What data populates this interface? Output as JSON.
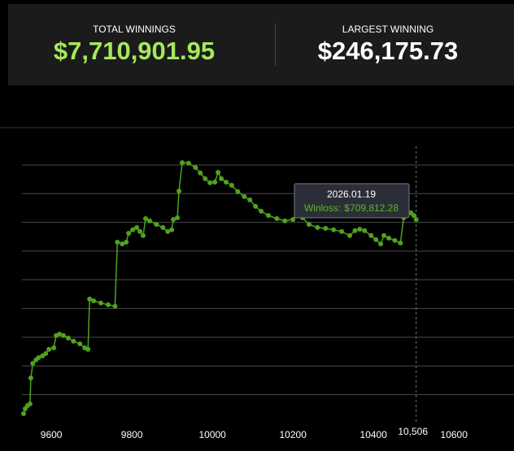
{
  "header": {
    "total_label": "TOTAL WINNINGS",
    "total_value": "$7,710,901.95",
    "largest_label": "LARGEST WINNING",
    "largest_value": "$246,175.73"
  },
  "chart_data": {
    "type": "line",
    "color": "#4fa21d",
    "x": [
      9531,
      9535,
      9541,
      9547,
      9549,
      9554,
      9562,
      9568,
      9578,
      9586,
      9594,
      9606,
      9612,
      9620,
      9630,
      9642,
      9655,
      9671,
      9683,
      9691,
      9695,
      9705,
      9723,
      9741,
      9758,
      9764,
      9776,
      9786,
      9792,
      9802,
      9812,
      9820,
      9828,
      9834,
      9844,
      9861,
      9877,
      9889,
      9899,
      9903,
      9913,
      9917,
      9925,
      9941,
      9958,
      9970,
      9982,
      9994,
      10006,
      10014,
      10022,
      10034,
      10048,
      10063,
      10079,
      10093,
      10107,
      10121,
      10139,
      10160,
      10180,
      10200,
      10210,
      10224,
      10240,
      10261,
      10281,
      10301,
      10321,
      10341,
      10354,
      10366,
      10378,
      10394,
      10406,
      10418,
      10426,
      10438,
      10453,
      10467,
      10475,
      10493,
      10500,
      10506
    ],
    "values": [
      34000,
      51000,
      62000,
      68000,
      158000,
      209000,
      221000,
      229000,
      235000,
      243000,
      258000,
      263000,
      306000,
      311000,
      306000,
      297000,
      286000,
      277000,
      263000,
      258000,
      433000,
      427000,
      419000,
      413000,
      408000,
      631000,
      625000,
      631000,
      662000,
      674000,
      682000,
      668000,
      654000,
      713000,
      705000,
      693000,
      682000,
      668000,
      674000,
      710000,
      716000,
      809000,
      908000,
      906000,
      891000,
      872000,
      852000,
      838000,
      840000,
      874000,
      852000,
      840000,
      829000,
      807000,
      790000,
      778000,
      756000,
      739000,
      724000,
      713000,
      705000,
      710000,
      733000,
      716000,
      693000,
      682000,
      679000,
      674000,
      668000,
      654000,
      671000,
      676000,
      671000,
      654000,
      640000,
      625000,
      654000,
      645000,
      637000,
      628000,
      716000,
      733000,
      724000,
      709812.28
    ],
    "xlim": [
      9527,
      10749
    ],
    "ylim": [
      0,
      1030000
    ],
    "xticks": [
      9600,
      9800,
      10000,
      10200,
      10400,
      10600
    ],
    "y_gridlines": [
      100000,
      200000,
      300000,
      400000,
      500000,
      600000,
      700000,
      800000,
      900000
    ],
    "crosshair": {
      "value": 10506,
      "label": "10,506"
    },
    "tooltip": {
      "date": "2026.01.19",
      "label": "Winloss:",
      "value": 709812.28,
      "value_label": "$709,812.28"
    }
  }
}
